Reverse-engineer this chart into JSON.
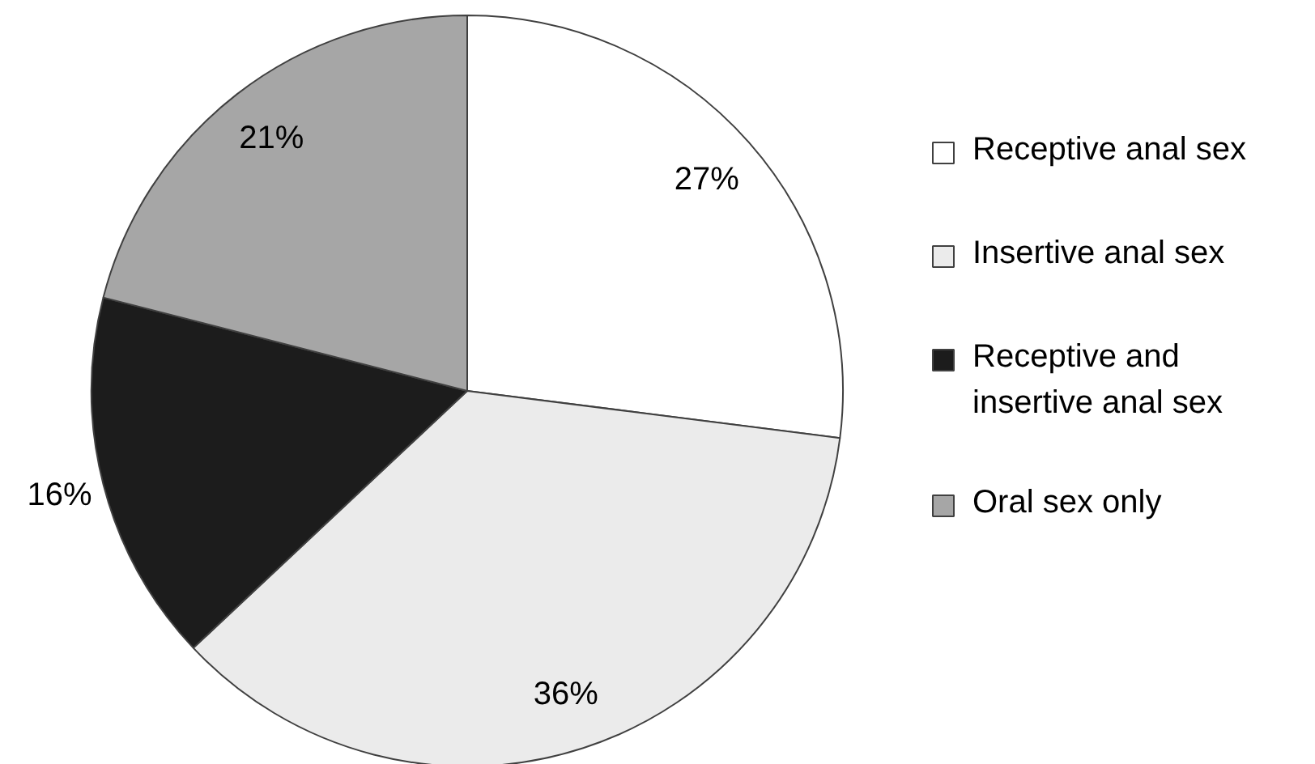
{
  "chart_data": {
    "type": "pie",
    "categories": [
      "Receptive anal sex",
      "Insertive anal sex",
      "Receptive and insertive anal sex",
      "Oral sex only"
    ],
    "values": [
      27,
      36,
      16,
      21
    ],
    "colors": [
      "#ffffff",
      "#ebebeb",
      "#1c1c1c",
      "#a6a6a6"
    ],
    "value_labels": [
      "27%",
      "36%",
      "16%",
      "21%"
    ],
    "legend": "right"
  }
}
